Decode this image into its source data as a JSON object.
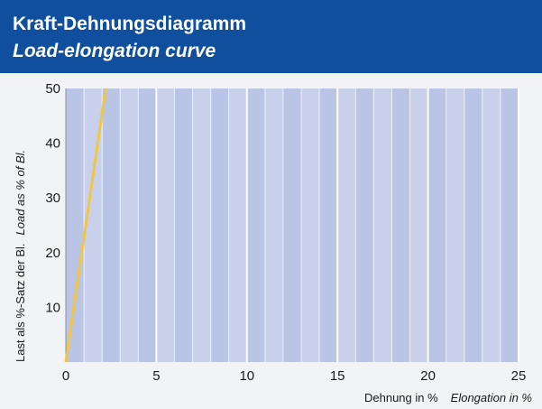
{
  "header": {
    "title_de": "Kraft-Dehnungsdiagramm",
    "title_en": "Load-elongation curve"
  },
  "colors": {
    "header_bg": "#0f4f9d",
    "plot_band_a": "#bac4e5",
    "plot_band_b": "#c9d0ec",
    "grid": "#ffffff",
    "line": "#f1c644"
  },
  "chart_data": {
    "type": "line",
    "title": "Kraft-Dehnungsdiagramm",
    "subtitle": "Load-elongation curve",
    "xlabel_de": "Dehnung in %",
    "xlabel_en": "Elongation in %",
    "ylabel_de": "Last als %-Satz der Bl.",
    "ylabel_en": "Load as % of Bl.",
    "xlim": [
      0,
      25
    ],
    "ylim": [
      0,
      50
    ],
    "xticks": [
      0,
      5,
      10,
      15,
      20,
      25
    ],
    "yticks": [
      10,
      20,
      30,
      40,
      50
    ],
    "grid": true,
    "series": [
      {
        "values": [
          [
            0,
            0
          ],
          [
            2.2,
            50
          ]
        ]
      }
    ]
  }
}
